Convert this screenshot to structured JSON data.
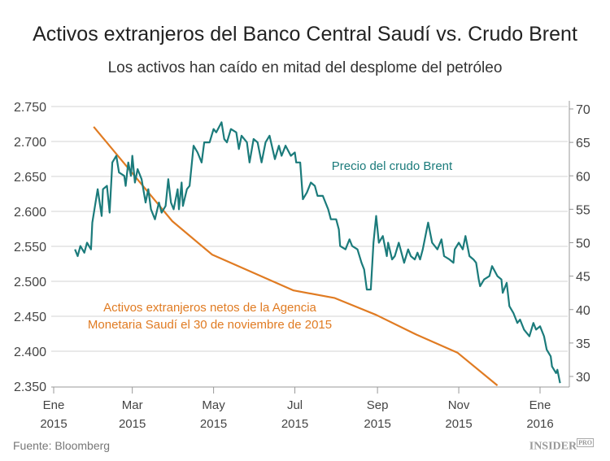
{
  "title": "Activos extranjeros del Banco Central Saudí vs. Crudo Brent",
  "subtitle": "Los activos han caído en mitad del desplome del petróleo",
  "source": "Fuente: Bloomberg",
  "logo": "INSIDER PRO",
  "chart_data": {
    "type": "line",
    "title": "Activos extranjeros del Banco Central Saudí vs. Crudo Brent",
    "subtitle": "Los activos han caído en mitad del desplome del petróleo",
    "grid": true,
    "x_ticks": [
      {
        "date": "2015-01-01",
        "label": [
          "Ene",
          "2015"
        ]
      },
      {
        "date": "2015-03-01",
        "label": [
          "Mar",
          "2015"
        ]
      },
      {
        "date": "2015-05-01",
        "label": [
          "May",
          "2015"
        ]
      },
      {
        "date": "2015-07-01",
        "label": [
          "Jul",
          "2015"
        ]
      },
      {
        "date": "2015-09-01",
        "label": [
          "Sep",
          "2015"
        ]
      },
      {
        "date": "2015-11-01",
        "label": [
          "Nov",
          "2015"
        ]
      },
      {
        "date": "2016-01-01",
        "label": [
          "Ene",
          "2016"
        ]
      }
    ],
    "y_left": {
      "ticks": [
        "2.750",
        "2.700",
        "2.650",
        "2.600",
        "2.550",
        "2.500",
        "2.450",
        "2.400",
        "2.350"
      ],
      "lim": [
        2.35,
        2.75
      ]
    },
    "y_right": {
      "ticks": [
        "70",
        "65",
        "60",
        "55",
        "50",
        "45",
        "40",
        "35",
        "30"
      ],
      "lim": [
        30,
        70
      ]
    },
    "series": [
      {
        "name": "Activos extranjeros netos de la Agencia Monetaria Saudí el 30 de noviembre de 2015",
        "label_lines": [
          "Activos extranjeros netos de la Agencia",
          "Monetaria Saudí el 30 de noviembre de 2015"
        ],
        "axis": "left",
        "color": "#e07b22",
        "points": [
          [
            "2015-01-31",
            2.721
          ],
          [
            "2015-03-31",
            2.586
          ],
          [
            "2015-04-30",
            2.538
          ],
          [
            "2015-06-30",
            2.487
          ],
          [
            "2015-07-31",
            2.476
          ],
          [
            "2015-08-31",
            2.452
          ],
          [
            "2015-09-30",
            2.424
          ],
          [
            "2015-10-31",
            2.398
          ],
          [
            "2015-11-30",
            2.351
          ]
        ]
      },
      {
        "name": "Precio del crudo Brent",
        "label_lines": [
          "Precio del crudo Brent"
        ],
        "axis": "right",
        "color": "#1b7b7b",
        "points": [
          [
            "2015-01-17",
            49
          ],
          [
            "2015-01-19",
            48
          ],
          [
            "2015-01-21",
            49.5
          ],
          [
            "2015-01-24",
            48.5
          ],
          [
            "2015-01-26",
            50
          ],
          [
            "2015-01-29",
            49
          ],
          [
            "2015-01-30",
            53
          ],
          [
            "2015-02-03",
            58
          ],
          [
            "2015-02-06",
            54
          ],
          [
            "2015-02-07",
            58
          ],
          [
            "2015-02-10",
            58.5
          ],
          [
            "2015-02-12",
            54.5
          ],
          [
            "2015-02-14",
            62
          ],
          [
            "2015-02-17",
            63
          ],
          [
            "2015-02-19",
            60.5
          ],
          [
            "2015-02-23",
            60
          ],
          [
            "2015-02-24",
            58.5
          ],
          [
            "2015-02-26",
            62
          ],
          [
            "2015-02-28",
            60
          ],
          [
            "2015-03-01",
            63
          ],
          [
            "2015-03-03",
            59
          ],
          [
            "2015-03-05",
            61
          ],
          [
            "2015-03-08",
            59.5
          ],
          [
            "2015-03-11",
            56
          ],
          [
            "2015-03-13",
            58
          ],
          [
            "2015-03-15",
            55
          ],
          [
            "2015-03-18",
            53.5
          ],
          [
            "2015-03-21",
            56
          ],
          [
            "2015-03-23",
            54.5
          ],
          [
            "2015-03-26",
            55.5
          ],
          [
            "2015-03-28",
            59.5
          ],
          [
            "2015-03-30",
            56
          ],
          [
            "2015-04-01",
            55
          ],
          [
            "2015-04-04",
            58
          ],
          [
            "2015-04-05",
            55
          ],
          [
            "2015-04-07",
            59
          ],
          [
            "2015-04-08",
            55.5
          ],
          [
            "2015-04-11",
            58
          ],
          [
            "2015-04-13",
            58.5
          ],
          [
            "2015-04-16",
            64.5
          ],
          [
            "2015-04-19",
            63.5
          ],
          [
            "2015-04-22",
            62
          ],
          [
            "2015-04-24",
            65
          ],
          [
            "2015-04-28",
            65
          ],
          [
            "2015-05-01",
            67
          ],
          [
            "2015-05-03",
            66.5
          ],
          [
            "2015-05-07",
            68
          ],
          [
            "2015-05-09",
            65.5
          ],
          [
            "2015-05-11",
            65
          ],
          [
            "2015-05-14",
            67
          ],
          [
            "2015-05-18",
            66.5
          ],
          [
            "2015-05-20",
            64
          ],
          [
            "2015-05-22",
            66
          ],
          [
            "2015-05-26",
            65
          ],
          [
            "2015-05-28",
            62
          ],
          [
            "2015-05-31",
            65.5
          ],
          [
            "2015-06-03",
            65
          ],
          [
            "2015-06-06",
            62
          ],
          [
            "2015-06-09",
            65
          ],
          [
            "2015-06-12",
            66
          ],
          [
            "2015-06-16",
            62.5
          ],
          [
            "2015-06-19",
            64.5
          ],
          [
            "2015-06-21",
            63
          ],
          [
            "2015-06-24",
            64.5
          ],
          [
            "2015-06-28",
            63
          ],
          [
            "2015-07-01",
            63.5
          ],
          [
            "2015-07-02",
            62
          ],
          [
            "2015-07-05",
            62
          ],
          [
            "2015-07-07",
            56.5
          ],
          [
            "2015-07-10",
            57.5
          ],
          [
            "2015-07-13",
            59
          ],
          [
            "2015-07-16",
            58.5
          ],
          [
            "2015-07-18",
            57
          ],
          [
            "2015-07-22",
            57
          ],
          [
            "2015-07-26",
            55
          ],
          [
            "2015-07-28",
            53.5
          ],
          [
            "2015-08-01",
            53.5
          ],
          [
            "2015-08-03",
            52
          ],
          [
            "2015-08-04",
            49.5
          ],
          [
            "2015-08-08",
            49
          ],
          [
            "2015-08-11",
            50.5
          ],
          [
            "2015-08-13",
            49.5
          ],
          [
            "2015-08-17",
            49
          ],
          [
            "2015-08-20",
            47
          ],
          [
            "2015-08-22",
            46
          ],
          [
            "2015-08-24",
            43
          ],
          [
            "2015-08-27",
            43
          ],
          [
            "2015-08-29",
            50
          ],
          [
            "2015-08-31",
            54
          ],
          [
            "2015-09-02",
            50
          ],
          [
            "2015-09-05",
            51
          ],
          [
            "2015-09-08",
            48
          ],
          [
            "2015-09-09",
            50
          ],
          [
            "2015-09-12",
            47.5
          ],
          [
            "2015-09-14",
            48
          ],
          [
            "2015-09-17",
            50
          ],
          [
            "2015-09-21",
            47
          ],
          [
            "2015-09-24",
            49
          ],
          [
            "2015-09-26",
            48
          ],
          [
            "2015-09-29",
            47.5
          ],
          [
            "2015-10-01",
            48.5
          ],
          [
            "2015-10-03",
            47.5
          ],
          [
            "2015-10-05",
            49
          ],
          [
            "2015-10-08",
            52
          ],
          [
            "2015-10-09",
            53
          ],
          [
            "2015-10-12",
            50
          ],
          [
            "2015-10-16",
            49
          ],
          [
            "2015-10-19",
            50.5
          ],
          [
            "2015-10-21",
            48
          ],
          [
            "2015-10-25",
            47.5
          ],
          [
            "2015-10-28",
            47
          ],
          [
            "2015-10-29",
            49
          ],
          [
            "2015-11-01",
            50
          ],
          [
            "2015-11-04",
            49
          ],
          [
            "2015-11-06",
            51
          ],
          [
            "2015-11-09",
            48
          ],
          [
            "2015-11-12",
            47.5
          ],
          [
            "2015-11-14",
            47
          ],
          [
            "2015-11-16",
            44.5
          ],
          [
            "2015-11-17",
            43.5
          ],
          [
            "2015-11-20",
            44.5
          ],
          [
            "2015-11-24",
            45
          ],
          [
            "2015-11-26",
            46.5
          ],
          [
            "2015-11-30",
            45
          ],
          [
            "2015-12-03",
            44.5
          ],
          [
            "2015-12-04",
            42.5
          ],
          [
            "2015-12-07",
            44
          ],
          [
            "2015-12-09",
            40.5
          ],
          [
            "2015-12-12",
            39.5
          ],
          [
            "2015-12-15",
            38
          ],
          [
            "2015-12-17",
            38.5
          ],
          [
            "2015-12-20",
            37
          ],
          [
            "2015-12-24",
            36
          ],
          [
            "2015-12-27",
            38
          ],
          [
            "2015-12-29",
            37
          ],
          [
            "2016-01-01",
            37.5
          ],
          [
            "2016-01-04",
            36
          ],
          [
            "2016-01-06",
            34
          ],
          [
            "2016-01-09",
            33
          ],
          [
            "2016-01-10",
            31.5
          ],
          [
            "2016-01-13",
            30.5
          ],
          [
            "2016-01-14",
            31
          ],
          [
            "2016-01-16",
            29
          ]
        ]
      }
    ]
  }
}
